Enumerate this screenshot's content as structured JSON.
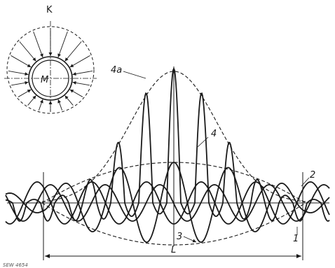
{
  "labels": {
    "K": "K",
    "M": "M",
    "4a": "4a",
    "4": "4",
    "3": "3",
    "2": "2",
    "1": "1",
    "L": "L"
  },
  "figure_code": "SEW 4654",
  "colors": {
    "ink": "#1a1a1a",
    "background": "#ffffff"
  }
}
